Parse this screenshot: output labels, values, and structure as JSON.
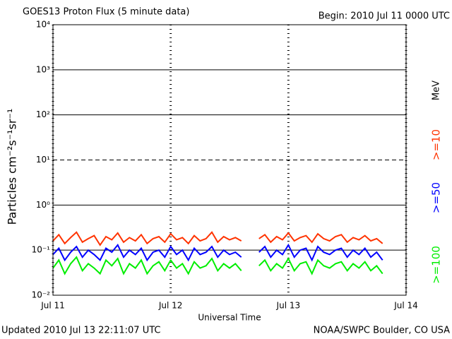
{
  "chart_data": {
    "type": "line",
    "title": "GOES13 Proton Flux (5 minute data)",
    "subtitle": "Begin: 2010 Jul 11 0000 UTC",
    "y_label": "Particles cm⁻²s⁻¹sr⁻¹",
    "x_label": "Universal Time",
    "footer_left": "Updated 2010 Jul 13 22:11:07 UTC",
    "footer_right": "NOAA/SWPC Boulder, CO USA",
    "legend_unit": "MeV",
    "log_y": true,
    "grid": true,
    "threshold_line": 10,
    "xlim": [
      0,
      3
    ],
    "xticks": [
      {
        "value": 0,
        "label": "Jul 11"
      },
      {
        "value": 1,
        "label": "Jul 12"
      },
      {
        "value": 2,
        "label": "Jul 13"
      },
      {
        "value": 3,
        "label": "Jul 14"
      }
    ],
    "ylim": [
      0.01,
      10000
    ],
    "yticks": [
      {
        "value": 0.01,
        "label": "10⁻²"
      },
      {
        "value": 0.1,
        "label": "10⁻¹"
      },
      {
        "value": 1,
        "label": "10⁰"
      },
      {
        "value": 10,
        "label": "10¹"
      },
      {
        "value": 100,
        "label": "10²"
      },
      {
        "value": 1000,
        "label": "10³"
      },
      {
        "value": 10000,
        "label": "10⁴"
      }
    ],
    "x": [
      0,
      0.05,
      0.1,
      0.15,
      0.2,
      0.25,
      0.3,
      0.35,
      0.4,
      0.45,
      0.5,
      0.55,
      0.6,
      0.65,
      0.7,
      0.75,
      0.8,
      0.85,
      0.9,
      0.95,
      1,
      1.05,
      1.1,
      1.15,
      1.2,
      1.25,
      1.3,
      1.35,
      1.4,
      1.45,
      1.5,
      1.55,
      1.6,
      1.65,
      1.7,
      1.75,
      1.8,
      1.85,
      1.9,
      1.95,
      2,
      2.05,
      2.1,
      2.15,
      2.2,
      2.25,
      2.3,
      2.35,
      2.4,
      2.45,
      2.5,
      2.55,
      2.6,
      2.65,
      2.7,
      2.75,
      2.8
    ],
    "series": [
      {
        "name": ">=10",
        "color": "#ff3300",
        "values": [
          0.16,
          0.22,
          0.14,
          0.19,
          0.25,
          0.15,
          0.18,
          0.21,
          0.13,
          0.2,
          0.17,
          0.24,
          0.15,
          0.19,
          0.16,
          0.22,
          0.14,
          0.18,
          0.2,
          0.15,
          0.23,
          0.17,
          0.19,
          0.14,
          0.21,
          0.16,
          0.18,
          0.25,
          0.15,
          0.2,
          0.17,
          0.19,
          0.16,
          null,
          null,
          0.18,
          0.22,
          0.15,
          0.2,
          0.17,
          0.24,
          0.16,
          0.19,
          0.21,
          0.15,
          0.23,
          0.18,
          0.16,
          0.2,
          0.22,
          0.15,
          0.19,
          0.17,
          0.21,
          0.16,
          0.18,
          0.14
        ]
      },
      {
        "name": ">=50",
        "color": "#0000ff",
        "values": [
          0.08,
          0.11,
          0.06,
          0.09,
          0.12,
          0.07,
          0.1,
          0.08,
          0.06,
          0.11,
          0.09,
          0.13,
          0.07,
          0.1,
          0.08,
          0.11,
          0.06,
          0.09,
          0.1,
          0.07,
          0.12,
          0.08,
          0.1,
          0.06,
          0.11,
          0.08,
          0.09,
          0.12,
          0.07,
          0.1,
          0.08,
          0.09,
          0.07,
          null,
          null,
          0.09,
          0.12,
          0.07,
          0.1,
          0.08,
          0.13,
          0.07,
          0.1,
          0.11,
          0.06,
          0.12,
          0.09,
          0.08,
          0.1,
          0.11,
          0.07,
          0.1,
          0.08,
          0.11,
          0.07,
          0.09,
          0.06
        ]
      },
      {
        "name": ">=100",
        "color": "#00ee00",
        "values": [
          0.04,
          0.06,
          0.03,
          0.05,
          0.07,
          0.035,
          0.05,
          0.04,
          0.03,
          0.06,
          0.045,
          0.065,
          0.03,
          0.05,
          0.04,
          0.06,
          0.03,
          0.045,
          0.055,
          0.035,
          0.06,
          0.04,
          0.05,
          0.03,
          0.055,
          0.04,
          0.045,
          0.065,
          0.035,
          0.05,
          0.04,
          0.05,
          0.035,
          null,
          null,
          0.045,
          0.06,
          0.035,
          0.05,
          0.04,
          0.065,
          0.035,
          0.05,
          0.055,
          0.03,
          0.06,
          0.045,
          0.04,
          0.05,
          0.055,
          0.035,
          0.05,
          0.04,
          0.055,
          0.035,
          0.045,
          0.03
        ]
      }
    ]
  }
}
